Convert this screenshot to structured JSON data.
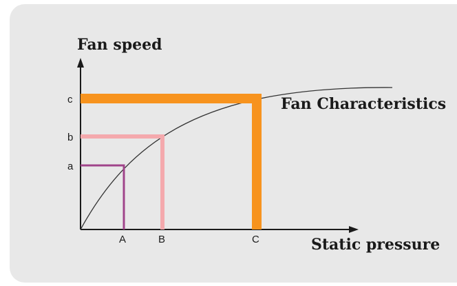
{
  "diagram": {
    "y_axis_label": "Fan speed",
    "x_axis_label": "Static pressure",
    "curve_label": "Fan Characteristics",
    "operating_points": [
      {
        "speed_label": "a",
        "pressure_label": "A",
        "color": "#a0448a"
      },
      {
        "speed_label": "b",
        "pressure_label": "B",
        "color": "#f4a9ad"
      },
      {
        "speed_label": "c",
        "pressure_label": "C",
        "color": "#f7931e"
      }
    ],
    "colors": {
      "background": "#e8e8e8",
      "axis": "#1a1a1a",
      "curve": "#333333"
    }
  }
}
